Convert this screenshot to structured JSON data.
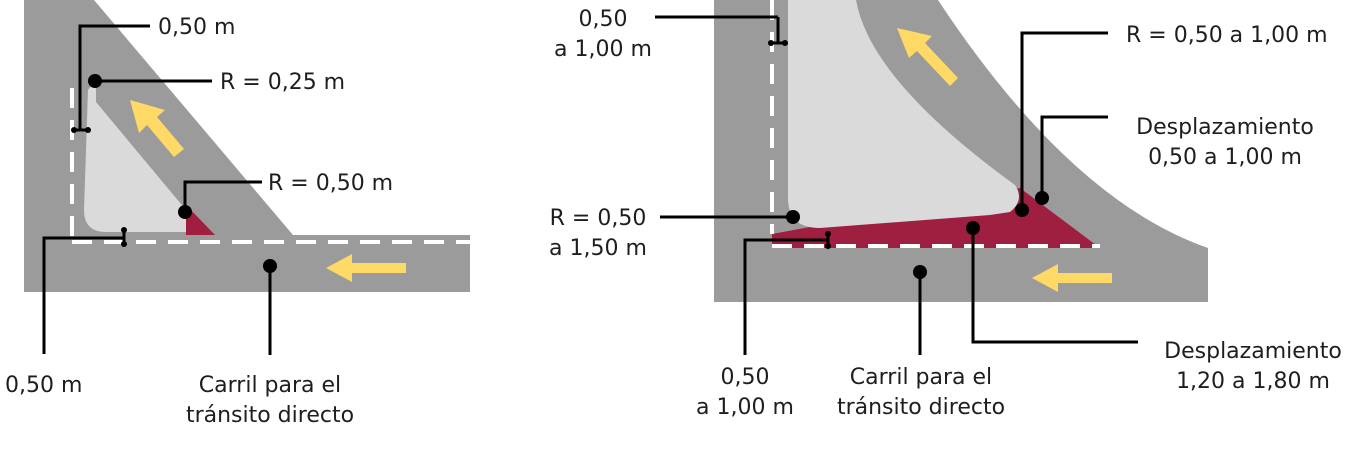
{
  "colors": {
    "road": "#9b9b9c",
    "island": "#dadada",
    "offset_area": "#9e1f40",
    "arrow": "#ffd966",
    "lane_line": "#ffffff",
    "leader": "#000000"
  },
  "left": {
    "offset_top": "0,50 m",
    "radius_top": "R = 0,25 m",
    "radius_corner": "R = 0,50 m",
    "offset_bottom": "0,50 m",
    "lane_line1": "Carril para el",
    "lane_line2": "tránsito directo"
  },
  "right": {
    "offset_top_line1": "0,50",
    "offset_top_line2": "a 1,00 m",
    "radius_corner": "R = 0,50 a 1,00 m",
    "shift_side_line1": "Desplazamiento",
    "shift_side_line2": "0,50 a 1,00 m",
    "radius_left_line1": "R = 0,50",
    "radius_left_line2": "a 1,50 m",
    "offset_bottom_line1": "0,50",
    "offset_bottom_line2": "a 1,00 m",
    "lane_line1": "Carril para el",
    "lane_line2": "tránsito directo",
    "shift_bottom_line1": "Desplazamiento",
    "shift_bottom_line2": "1,20 a 1,80 m"
  },
  "icons": [
    "arrow-icon"
  ]
}
